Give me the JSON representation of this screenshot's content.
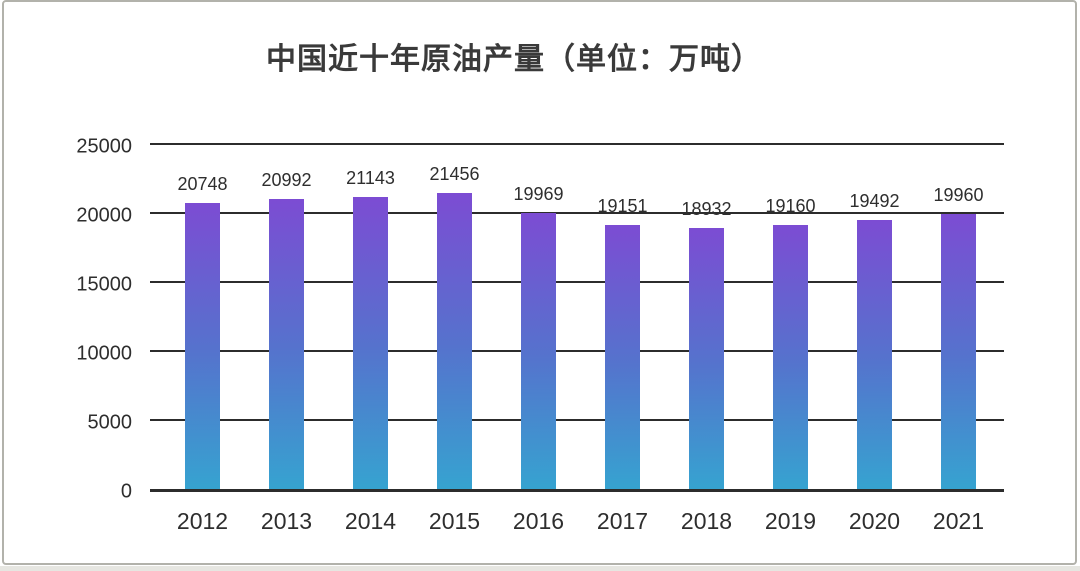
{
  "chart_data": {
    "type": "bar",
    "title": "中国近十年原油产量（单位：万吨）",
    "categories": [
      "2012",
      "2013",
      "2014",
      "2015",
      "2016",
      "2017",
      "2018",
      "2019",
      "2020",
      "2021"
    ],
    "values": [
      20748,
      20992,
      21143,
      21456,
      19969,
      19151,
      18932,
      19160,
      19492,
      19960
    ],
    "xlabel": "",
    "ylabel": "",
    "ylim": [
      0,
      25000
    ],
    "yticks": [
      0,
      5000,
      10000,
      15000,
      20000,
      25000
    ],
    "grid": true,
    "legend": "none",
    "data_labels_shown": true,
    "colors": {
      "bar_gradient_top": "#7c4cd3",
      "bar_gradient_mid": "#5573cd",
      "bar_gradient_bottom": "#36a3d0",
      "gridline": "#2c2c2c",
      "axis_text": "#2e2e2e",
      "title_text": "#3a3a3a",
      "card_border": "#b2b2ab",
      "background": "#ffffff"
    }
  }
}
